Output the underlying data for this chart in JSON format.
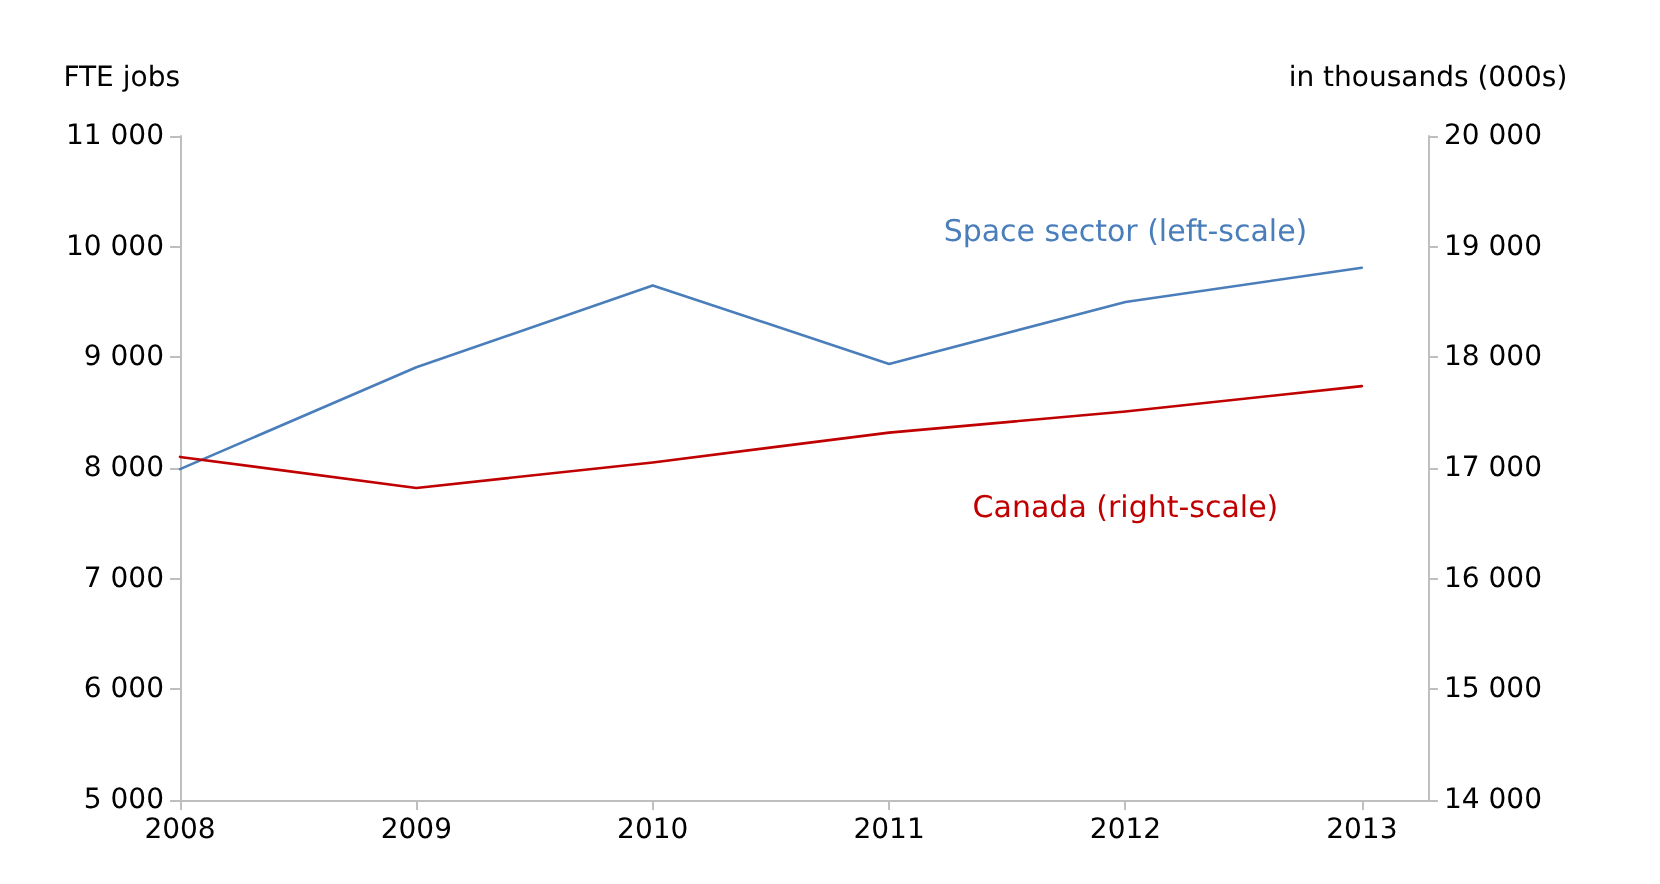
{
  "chart_data": {
    "type": "line",
    "ylabel": "FTE jobs",
    "y2label": "in thousands (000s)",
    "x": [
      2008,
      2009,
      2010,
      2011,
      2012,
      2013
    ],
    "xlim": [
      2008,
      2013.28
    ],
    "xticks": [
      2008,
      2009,
      2010,
      2011,
      2012,
      2013
    ],
    "ylim": [
      5000,
      11000
    ],
    "yticks": [
      {
        "value": 5000,
        "label": "5 000"
      },
      {
        "value": 6000,
        "label": "6 000"
      },
      {
        "value": 7000,
        "label": "7 000"
      },
      {
        "value": 8000,
        "label": "8 000"
      },
      {
        "value": 9000,
        "label": "9 000"
      },
      {
        "value": 10000,
        "label": "10 000"
      },
      {
        "value": 11000,
        "label": "11 000"
      }
    ],
    "y2lim": [
      14000,
      20000
    ],
    "y2ticks": [
      {
        "value": 14000,
        "label": "14 000"
      },
      {
        "value": 15000,
        "label": "15 000"
      },
      {
        "value": 16000,
        "label": "16 000"
      },
      {
        "value": 17000,
        "label": "17 000"
      },
      {
        "value": 18000,
        "label": "18 000"
      },
      {
        "value": 19000,
        "label": "19 000"
      },
      {
        "value": 20000,
        "label": "20 000"
      }
    ],
    "series": [
      {
        "name": "Space sector (left-scale)",
        "color": "#4a7ebb",
        "values": [
          7990,
          8910,
          9650,
          8940,
          9500,
          9810
        ]
      },
      {
        "name": "Canada (right-scale)",
        "color": "#c00000",
        "axis": "y2",
        "values": [
          17100,
          16820,
          17050,
          17320,
          17510,
          17740
        ]
      }
    ],
    "grid": false,
    "legend": false,
    "marker": "none",
    "line_style": "solid"
  }
}
